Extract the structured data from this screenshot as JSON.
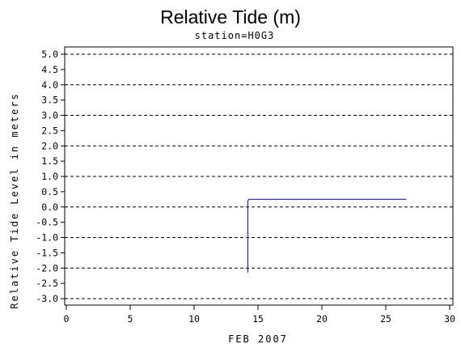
{
  "chart_data": {
    "type": "line",
    "title": "Relative Tide (m)",
    "subtitle": "station=H0G3",
    "xlabel": "FEB 2007",
    "ylabel": "Relative Tide Level in meters",
    "xlim": [
      0,
      30
    ],
    "ylim": [
      -3.0,
      5.0
    ],
    "x_ticks": [
      0,
      5,
      10,
      15,
      20,
      25,
      30
    ],
    "x_tick_labels": [
      "0",
      "5",
      "10",
      "15",
      "20",
      "25",
      "30"
    ],
    "y_ticks": [
      5.0,
      4.5,
      4.0,
      3.5,
      3.0,
      2.5,
      2.0,
      1.5,
      1.0,
      0.5,
      0.0,
      -0.5,
      -1.0,
      -1.5,
      -2.0,
      -2.5,
      -3.0
    ],
    "y_tick_labels": [
      "5.0",
      "4.5",
      "4.0",
      "3.5",
      "3.0",
      "2.5",
      "2.0",
      "1.5",
      "1.0",
      "0.5",
      "0.0",
      "-0.5",
      "-1.0",
      "-1.5",
      "-2.0",
      "-2.5",
      "-3.0"
    ],
    "grid_lines_y": [
      5.0,
      4.0,
      3.0,
      2.0,
      1.0,
      0.0,
      -1.0,
      -2.0,
      -3.0
    ],
    "grid": "horizontal dashed",
    "series": [
      {
        "color": "#0000cc",
        "points": [
          [
            14.2,
            -2.15
          ],
          [
            14.2,
            0.2
          ],
          [
            14.3,
            0.25
          ],
          [
            26.6,
            0.25
          ]
        ]
      }
    ]
  }
}
